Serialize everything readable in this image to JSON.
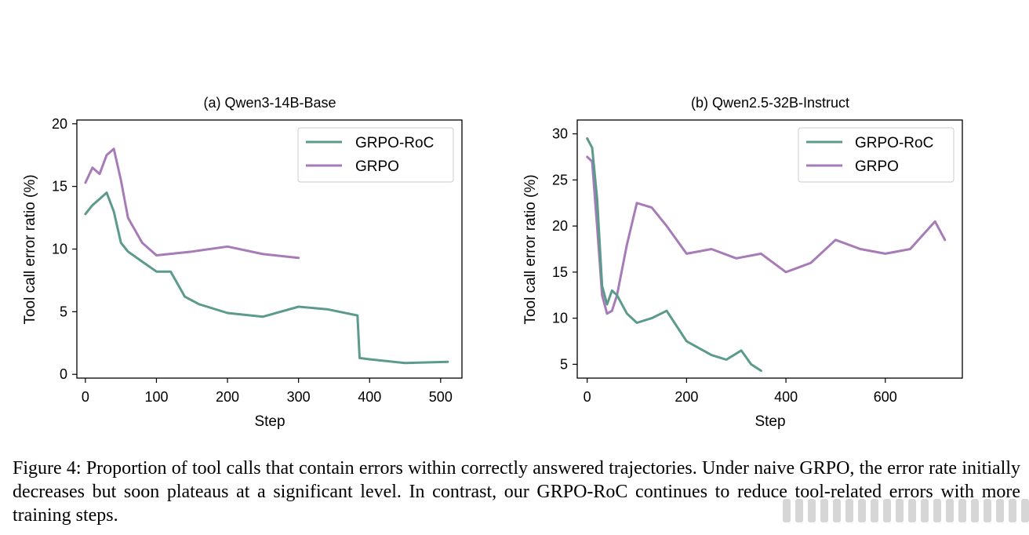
{
  "figure": {
    "caption": "Figure 4: Proportion of tool calls that contain errors within correctly answered trajectories. Under naive GRPO, the error rate initially decreases but soon plateaus at a significant level. In contrast, our GRPO-RoC continues to reduce tool-related errors with more training steps."
  },
  "colors": {
    "grpo_roc": "#5c9a8b",
    "grpo": "#a67bb8"
  },
  "chart_data": [
    {
      "type": "line",
      "title": "(a) Qwen3-14B-Base",
      "xlabel": "Step",
      "ylabel": "Tool call error ratio (%)",
      "xlim": [
        -12,
        530
      ],
      "ylim": [
        -0.3,
        20.3
      ],
      "xticks": [
        0,
        100,
        200,
        300,
        400,
        500
      ],
      "yticks": [
        0,
        5,
        10,
        15,
        20
      ],
      "grid": false,
      "legend": "top-right",
      "series": [
        {
          "name": "GRPO-RoC",
          "color": "#5c9a8b",
          "x": [
            0,
            10,
            20,
            30,
            40,
            50,
            60,
            80,
            100,
            120,
            140,
            160,
            200,
            250,
            300,
            340,
            383,
            386,
            400,
            450,
            510
          ],
          "y": [
            12.8,
            13.5,
            14.0,
            14.5,
            13.0,
            10.5,
            9.8,
            9.0,
            8.2,
            8.2,
            6.2,
            5.6,
            4.9,
            4.6,
            5.4,
            5.2,
            4.7,
            1.3,
            1.2,
            0.9,
            1.0
          ]
        },
        {
          "name": "GRPO",
          "color": "#a67bb8",
          "x": [
            0,
            10,
            20,
            30,
            40,
            50,
            60,
            80,
            100,
            150,
            200,
            250,
            300
          ],
          "y": [
            15.3,
            16.5,
            16.0,
            17.5,
            18.0,
            15.5,
            12.5,
            10.5,
            9.5,
            9.8,
            10.2,
            9.6,
            9.3
          ]
        }
      ]
    },
    {
      "type": "line",
      "title": "(b) Qwen2.5-32B-Instruct",
      "xlabel": "Step",
      "ylabel": "Tool call error ratio (%)",
      "xlim": [
        -20,
        755
      ],
      "ylim": [
        3.5,
        31.5
      ],
      "xticks": [
        0,
        200,
        400,
        600
      ],
      "yticks": [
        5,
        10,
        15,
        20,
        25,
        30
      ],
      "grid": false,
      "legend": "top-right",
      "series": [
        {
          "name": "GRPO-RoC",
          "color": "#5c9a8b",
          "x": [
            0,
            10,
            20,
            30,
            40,
            50,
            60,
            80,
            100,
            130,
            160,
            200,
            250,
            280,
            310,
            330,
            350
          ],
          "y": [
            29.5,
            28.5,
            23.0,
            13.5,
            11.5,
            13.0,
            12.5,
            10.5,
            9.5,
            10.0,
            10.8,
            7.5,
            6.0,
            5.5,
            6.5,
            5.0,
            4.3
          ]
        },
        {
          "name": "GRPO",
          "color": "#a67bb8",
          "x": [
            0,
            10,
            20,
            30,
            40,
            50,
            60,
            80,
            100,
            130,
            160,
            200,
            250,
            300,
            350,
            400,
            450,
            500,
            550,
            600,
            650,
            700,
            720
          ],
          "y": [
            27.5,
            27.0,
            20.0,
            12.5,
            10.5,
            10.8,
            12.5,
            18.0,
            22.5,
            22.0,
            20.0,
            17.0,
            17.5,
            16.5,
            17.0,
            15.0,
            16.0,
            18.5,
            17.5,
            17.0,
            17.5,
            20.5,
            18.5
          ]
        }
      ]
    }
  ]
}
